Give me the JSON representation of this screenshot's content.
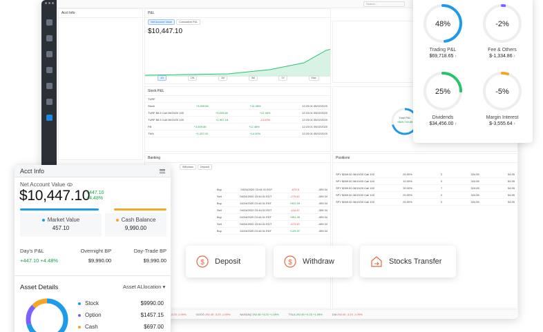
{
  "window": {
    "search_placeholder": "Search..."
  },
  "background": {
    "acct_title": "Acct Info",
    "pl_title": "P&L",
    "pl_tabs": [
      "Net Account Value",
      "Cumulative P&L"
    ],
    "pl_value": "$10,447.10",
    "pl_periods": [
      "1D",
      "1W",
      "1M",
      "3M",
      "1Y",
      "Max"
    ],
    "stock_pl_title": "Stock P&L",
    "stock_rows": [
      {
        "sym": "TURF",
        "pl": "",
        "ratio": "",
        "time": ""
      },
      {
        "sym": "Stock",
        "pl": "+3,609.66",
        "ratio": "+12.48%",
        "time": "12:23:01 05/22/2020"
      },
      {
        "sym": "TURF $6.5 Call 05/20/20 100",
        "pl": "+3,609.66",
        "ratio": "+12.48%",
        "time": "12:23:01 05/22/2020"
      },
      {
        "sym": "TURF $6.5 Call 05/20/20 100",
        "pl": "+1,907.18",
        "ratio": "-13.00%",
        "time": "12:23:01 05/22/2020"
      },
      {
        "sym": "FB",
        "pl": "+3,609.66",
        "ratio": "+12.48%",
        "time": "12:23:01 05/22/2020"
      },
      {
        "sym": "TWX",
        "pl": "+1,437.00",
        "ratio": "+14.40%",
        "time": "12:23:01 05/22/2020"
      }
    ],
    "banking_title": "Banking",
    "banking_tabs": [
      "Withdraw",
      "Deposit"
    ],
    "banking_rows": [
      {
        "type": "Buy",
        "time": "04/24/2020 23:44:31 EDT",
        "amount": "-675.5",
        "balance": "-309.34"
      },
      {
        "type": "Sell",
        "time": "04/24/2020 23:44:31 EDT",
        "amount": "-279.62",
        "balance": "-309.34"
      },
      {
        "type": "Buy",
        "time": "04/24/2020 23:44:31 EDT",
        "amount": "+522.09",
        "balance": "-309.34"
      },
      {
        "type": "Sell",
        "time": "04/24/2020 23:44:31 EDT",
        "amount": "-116.42",
        "balance": "-309.34"
      },
      {
        "type": "Buy",
        "time": "04/24/2020 23:44:31 EDT",
        "amount": "+651.49",
        "balance": "-309.34"
      },
      {
        "type": "Sell",
        "time": "04/24/2020 23:44:31 EDT",
        "amount": "-673.39",
        "balance": "-309.34"
      },
      {
        "type": "Buy",
        "time": "04/24/2020 23:44:31 EDT",
        "amount": "+129.37",
        "balance": "-309.34"
      }
    ],
    "positions_title": "Positions",
    "positions_rows": [
      {
        "sym": "SPY $289.00 06/19/20 Call 100",
        "ratio": "20.00%",
        "qty": "2",
        "mkt": "324.55",
        "last": "54.55"
      },
      {
        "sym": "SPY $289.00 06/19/20 Call 100",
        "ratio": "10.00%",
        "qty": "2",
        "mkt": "324.55",
        "last": "54.55"
      },
      {
        "sym": "SPY $289.00 06/19/20 Call 100",
        "ratio": "30.00%",
        "qty": "7",
        "mkt": "324.55",
        "last": "54.55"
      },
      {
        "sym": "SPY $289.00 06/19/20 Call 100",
        "ratio": "20.00%",
        "qty": "2",
        "mkt": "324.55",
        "last": "54.55"
      },
      {
        "sym": "SPY $289.00 06/19/20 Call 100",
        "ratio": "20.00%",
        "qty": "2",
        "mkt": "324.55",
        "last": "54.55"
      }
    ],
    "total_pl_label": "Total P&L",
    "total_pl_value": "+$69,718.65",
    "ticker_items": [
      {
        "sym": "AAPL",
        "val": "292.45 -3.23 -1.09%",
        "cls": "neg"
      },
      {
        "sym": "GOOG",
        "val": "292.45 -3.23 -1.09%",
        "cls": "neg"
      },
      {
        "sym": "NASDAQ",
        "val": "292.45 +3.23 +1.09%",
        "cls": "pos"
      },
      {
        "sym": "TSLA",
        "val": "292.45 +3.23 +1.09%",
        "cls": "pos"
      },
      {
        "sym": "DIA",
        "val": "292.45 -3.23 -1.09%",
        "cls": "neg"
      }
    ]
  },
  "acct": {
    "title": "Acct Info",
    "nav_label": "Net Account Value",
    "nav_value": "$10,447.10",
    "nav_change_abs": "+447.10",
    "nav_change_pct": "+4.48%",
    "market_value_label": "Market Value",
    "market_value": "457.10",
    "cash_balance_label": "Cash Balance",
    "cash_balance": "9,990.00",
    "days_pl_label": "Day's P&L",
    "days_pl": "+447.10 +4.48%",
    "overnight_bp_label": "Overnight BP",
    "overnight_bp": "$9,990.00",
    "daytrade_bp_label": "Day-Trade BP",
    "daytrade_bp": "$9,990.00",
    "asset_details_title": "Asset Details",
    "asset_location_label": "Asset ALlocation",
    "assets": [
      {
        "name": "Stock",
        "amount": "$9990.00",
        "color": "#1e9be8"
      },
      {
        "name": "Option",
        "amount": "$1457.15",
        "color": "#7b61ff"
      },
      {
        "name": "Cash",
        "amount": "$697.00",
        "color": "#f5a623"
      }
    ]
  },
  "actions": {
    "deposit": "Deposit",
    "withdraw": "Withdraw",
    "stocks_transfer": "Stocks Transfer"
  },
  "pl_breakdown": [
    {
      "pct": "48%",
      "label": "Trading P&L",
      "amount": "$69,718.65",
      "color": "#1e9be8",
      "fill": 0.48
    },
    {
      "pct": "-2%",
      "label": "Fee & Others",
      "amount": "$-1,334.86",
      "color": "#7b61ff",
      "fill": 0.02
    },
    {
      "pct": "25%",
      "label": "Dividends",
      "amount": "$34,456.00",
      "color": "#27c46b",
      "fill": 0.25
    },
    {
      "pct": "-5%",
      "label": "Margin Interest",
      "amount": "$-3,555.64",
      "color": "#f5a623",
      "fill": 0.05
    }
  ]
}
